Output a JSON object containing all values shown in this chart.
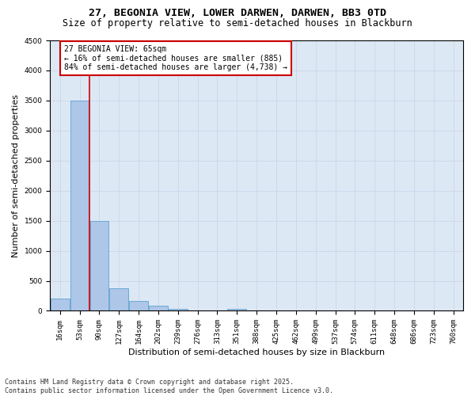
{
  "title1": "27, BEGONIA VIEW, LOWER DARWEN, DARWEN, BB3 0TD",
  "title2": "Size of property relative to semi-detached houses in Blackburn",
  "xlabel": "Distribution of semi-detached houses by size in Blackburn",
  "ylabel": "Number of semi-detached properties",
  "bin_labels": [
    "16sqm",
    "53sqm",
    "90sqm",
    "127sqm",
    "164sqm",
    "202sqm",
    "239sqm",
    "276sqm",
    "313sqm",
    "351sqm",
    "388sqm",
    "425sqm",
    "462sqm",
    "499sqm",
    "537sqm",
    "574sqm",
    "611sqm",
    "648sqm",
    "686sqm",
    "723sqm",
    "760sqm"
  ],
  "bar_heights": [
    200,
    3500,
    1500,
    370,
    165,
    90,
    30,
    5,
    0,
    30,
    0,
    0,
    0,
    0,
    0,
    0,
    0,
    0,
    0,
    0,
    0
  ],
  "bar_color": "#aec6e8",
  "bar_edge_color": "#6aaad4",
  "vline_x": 1.5,
  "annotation_text": "27 BEGONIA VIEW: 65sqm\n← 16% of semi-detached houses are smaller (885)\n84% of semi-detached houses are larger (4,738) →",
  "annotation_box_color": "#ffffff",
  "annotation_box_edge_color": "#cc0000",
  "vline_color": "#cc0000",
  "ylim": [
    0,
    4500
  ],
  "yticks": [
    0,
    500,
    1000,
    1500,
    2000,
    2500,
    3000,
    3500,
    4000,
    4500
  ],
  "grid_color": "#ccd6e8",
  "background_color": "#dde8f5",
  "footer_text": "Contains HM Land Registry data © Crown copyright and database right 2025.\nContains public sector information licensed under the Open Government Licence v3.0.",
  "title1_fontsize": 9.5,
  "title2_fontsize": 8.5,
  "xlabel_fontsize": 8,
  "ylabel_fontsize": 8,
  "tick_fontsize": 6.5,
  "annotation_fontsize": 7,
  "footer_fontsize": 6
}
